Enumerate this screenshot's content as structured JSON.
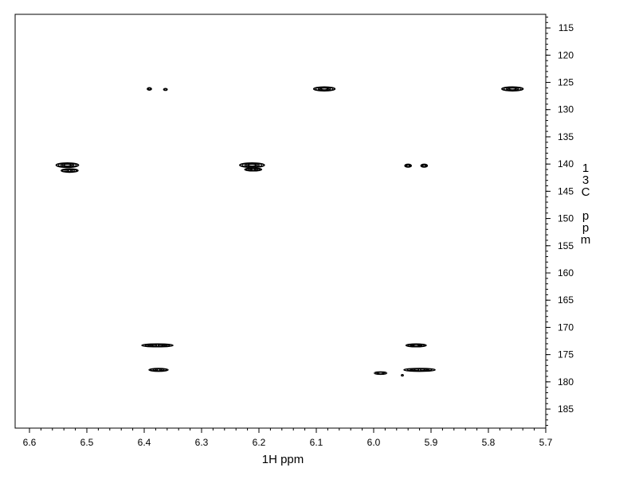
{
  "chart_data": {
    "type": "scatter",
    "title": "",
    "xlabel": "1H ppm",
    "ylabel": "13C ppm",
    "ylabel_chars": [
      "1",
      "3",
      "C",
      "",
      "p",
      "p",
      "m"
    ],
    "x_reversed": true,
    "y_reversed": true,
    "xlim": [
      6.625,
      5.7
    ],
    "ylim": [
      112.5,
      188.5
    ],
    "xticks": [
      6.6,
      6.5,
      6.4,
      6.3,
      6.2,
      6.1,
      6.0,
      5.9,
      5.8,
      5.7
    ],
    "xtick_labels": [
      "6.6",
      "6.5",
      "6.4",
      "6.3",
      "6.2",
      "6.1",
      "6.0",
      "5.9",
      "5.8",
      "5.7"
    ],
    "yticks": [
      115,
      120,
      125,
      130,
      135,
      140,
      145,
      150,
      155,
      160,
      165,
      170,
      175,
      180,
      185
    ],
    "ytick_labels": [
      "115",
      "120",
      "125",
      "130",
      "135",
      "140",
      "145",
      "150",
      "155",
      "160",
      "165",
      "170",
      "175",
      "180",
      "185"
    ],
    "grid": false,
    "legend": "none",
    "peaks": [
      {
        "x": 6.391,
        "y": 126.2,
        "w": 0.008,
        "h": 0.5
      },
      {
        "x": 6.363,
        "y": 126.3,
        "w": 0.007,
        "h": 0.4
      },
      {
        "x": 6.086,
        "y": 126.2,
        "w": 0.038,
        "h": 0.8
      },
      {
        "x": 5.758,
        "y": 126.2,
        "w": 0.038,
        "h": 0.8
      },
      {
        "x": 6.534,
        "y": 140.2,
        "w": 0.04,
        "h": 0.9
      },
      {
        "x": 6.53,
        "y": 141.2,
        "w": 0.03,
        "h": 0.7
      },
      {
        "x": 6.212,
        "y": 140.2,
        "w": 0.044,
        "h": 0.9
      },
      {
        "x": 6.21,
        "y": 141.0,
        "w": 0.03,
        "h": 0.6
      },
      {
        "x": 5.94,
        "y": 140.3,
        "w": 0.012,
        "h": 0.6
      },
      {
        "x": 5.912,
        "y": 140.3,
        "w": 0.012,
        "h": 0.6
      },
      {
        "x": 6.377,
        "y": 173.3,
        "w": 0.055,
        "h": 0.6
      },
      {
        "x": 5.926,
        "y": 173.3,
        "w": 0.036,
        "h": 0.6
      },
      {
        "x": 6.375,
        "y": 177.8,
        "w": 0.034,
        "h": 0.6
      },
      {
        "x": 5.988,
        "y": 178.4,
        "w": 0.022,
        "h": 0.5
      },
      {
        "x": 5.92,
        "y": 177.8,
        "w": 0.055,
        "h": 0.6
      },
      {
        "x": 5.95,
        "y": 178.8,
        "w": 0.004,
        "h": 0.3
      }
    ]
  },
  "colors": {
    "contour": "#000000",
    "axis": "#000000",
    "background": "#ffffff"
  }
}
